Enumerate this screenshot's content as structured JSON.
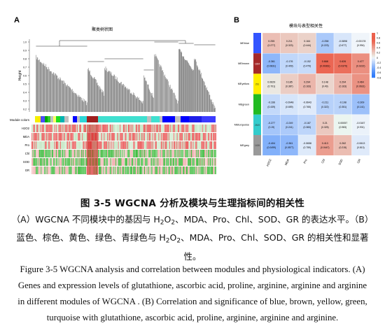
{
  "panel_a": {
    "label": "A",
    "title": "聚类树状图",
    "yaxis_label": "Height",
    "ticks": [
      "1.0",
      "0.9",
      "0.8",
      "0.7",
      "0.6",
      "0.5",
      "0.4",
      "0.3",
      "0.2"
    ],
    "module_colors_label": "Module colors",
    "traits": [
      "H2O2",
      "MDA",
      "Pro",
      "Chl",
      "SOD",
      "GR"
    ]
  },
  "panel_b": {
    "label": "B",
    "title": "模块与表型相关性",
    "modules": [
      "MEblue",
      "MEbrown",
      "MEyellow",
      "MEgreen",
      "MEturquoise",
      "MEgrey"
    ],
    "module_sizes": [
      "",
      "1924",
      "291",
      "",
      "2819",
      "1426"
    ],
    "columns": [
      "H2O2",
      "MDA",
      "Pro",
      "Chl",
      "SOD",
      "GR"
    ],
    "cells": [
      [
        [
          "0.255",
          "(0.277)"
        ],
        [
          "0.211",
          "(0.323)"
        ],
        [
          "0.164",
          "(0.444)"
        ],
        [
          "-0.258",
          "(0.223)"
        ],
        [
          "-0.0898",
          "(0.677)"
        ],
        [
          "-0.00178",
          "(0.994)"
        ]
      ],
      [
        [
          "-0.361",
          "(0.0831)"
        ],
        [
          "-0.176",
          "(0.409)"
        ],
        [
          "-0.152",
          "(0.479)"
        ],
        [
          "0.668",
          "(0.00361)"
        ],
        [
          "0.626",
          "(0.0379)"
        ],
        [
          "0.477",
          "(0.0222)"
        ]
      ],
      [
        [
          "0.0629",
          "(0.701)"
        ],
        [
          "0.185",
          "(0.387)"
        ],
        [
          "0.294",
          "(0.163)"
        ],
        [
          "0.148",
          "(0.49)"
        ],
        [
          "0.294",
          "(0.163)"
        ],
        [
          "0.464",
          "(0.0631)"
        ]
      ],
      [
        [
          "-0.166",
          "(0.439)"
        ],
        [
          "-0.0948",
          "(0.659)"
        ],
        [
          "-0.0643",
          "(0.765)"
        ],
        [
          "-0.211",
          "(0.322)"
        ],
        [
          "-0.198",
          "(0.351)"
        ],
        [
          "-0.309",
          "(0.141)"
        ]
      ],
      [
        [
          "-0.277",
          "(0.19)"
        ],
        [
          "-0.249",
          "(0.241)"
        ],
        [
          "-0.187",
          "(0.383)"
        ],
        [
          "0.21",
          "(0.325)"
        ],
        [
          "0.00057",
          "(0.983)"
        ],
        [
          "-0.0187",
          "(0.931)"
        ]
      ],
      [
        [
          "-0.404",
          "(0.0499)"
        ],
        [
          "-0.361",
          "(0.0577)"
        ],
        [
          "-0.0658",
          "(0.759)"
        ],
        [
          "0.413",
          "(0.0447)"
        ],
        [
          "0.262",
          "(0.215)"
        ],
        [
          "-0.0613",
          "(0.813)"
        ]
      ]
    ],
    "scale": [
      "1",
      "0.8",
      "0.6",
      "0.4",
      "0.2",
      "0",
      "-0.2",
      "-0.4",
      "-0.6",
      "-0.8"
    ]
  },
  "figure_title": "图 3-5 WGCNA 分析及模块与生理指标间的相关性",
  "zh_caption": {
    "l1a": "（A）WGCNA 不同模块中的基因与 H",
    "sub1": "2",
    "l1b": "O",
    "sub2": "2",
    "l1c": "、MDA、Pro、Chl、SOD、GR 的表达水平。（B）",
    "l2a": "蓝色、棕色、黄色、绿色、青绿色与 H",
    "sub3": "2",
    "l2b": "O",
    "sub4": "2",
    "l2c": "、MDA、Pro、Chl、SOD、GR 的相关性和显著",
    "l3": "性。"
  },
  "en_caption": {
    "l1": "Figure 3-5 WGCNA analysis and correlation between modules and physiological indicators. (A)",
    "l2": "Genes and expression levels of glutathione, ascorbic acid, proline, arginine, arginine and arginine",
    "l3": "in different modules of WGCNA . (B) Correlation and significance of blue, brown, yellow, green,",
    "l4": "turquoise with glutathione, ascorbic acid, proline, arginine, arginine and arginine."
  }
}
